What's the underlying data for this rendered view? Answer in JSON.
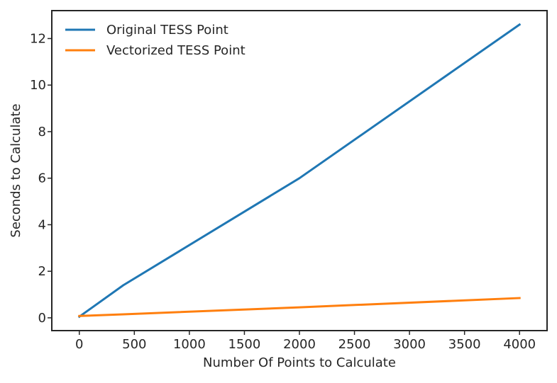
{
  "chart_data": {
    "type": "line",
    "title": "",
    "xlabel": "Number Of Points to Calculate",
    "ylabel": "Seconds to Calculate",
    "xlim": [
      -250,
      4250
    ],
    "ylim": [
      -0.55,
      13.2
    ],
    "xticks": [
      0,
      500,
      1000,
      1500,
      2000,
      2500,
      3000,
      3500,
      4000
    ],
    "yticks": [
      0,
      2,
      4,
      6,
      8,
      10,
      12
    ],
    "grid": false,
    "legend_position": "top-left",
    "series": [
      {
        "name": "Original TESS Point",
        "color": "#1f77b4",
        "x": [
          0,
          400,
          2000,
          4000
        ],
        "y": [
          0.05,
          1.4,
          6.0,
          12.6
        ]
      },
      {
        "name": "Vectorized TESS Point",
        "color": "#ff7f0e",
        "x": [
          0,
          400,
          2000,
          4000
        ],
        "y": [
          0.08,
          0.15,
          0.45,
          0.85
        ]
      }
    ]
  }
}
